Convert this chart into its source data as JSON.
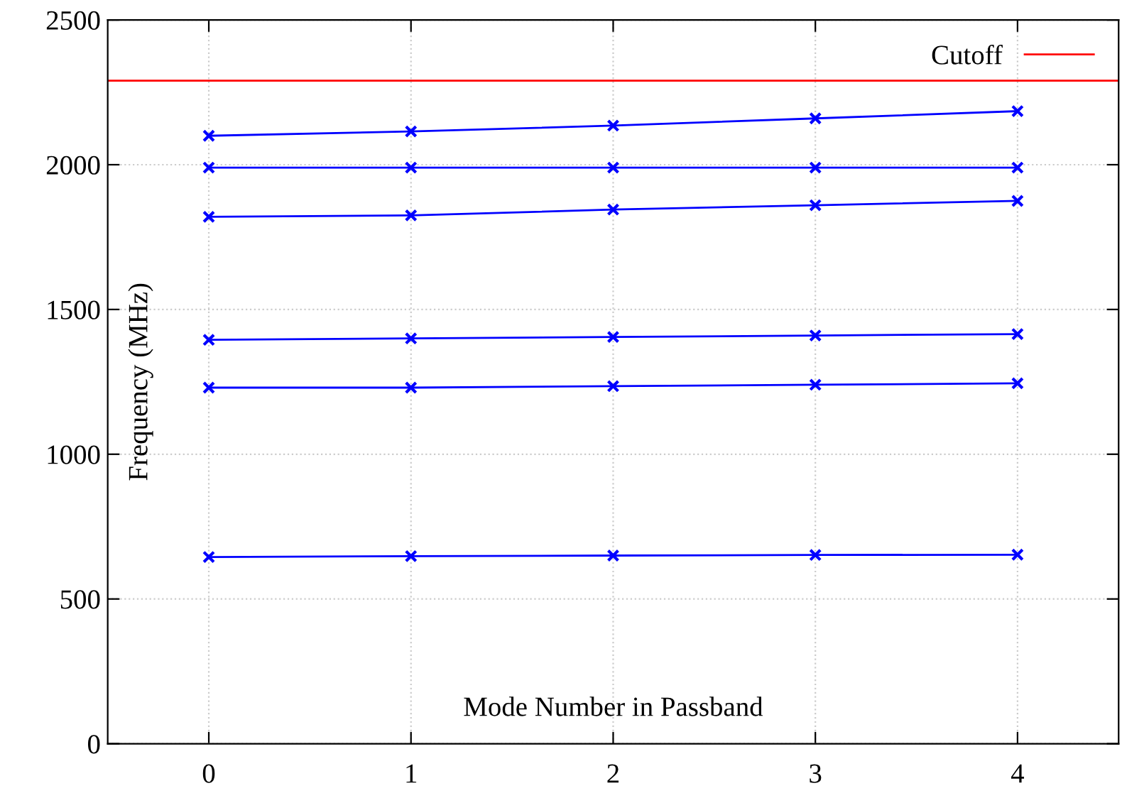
{
  "chart_data": {
    "type": "line",
    "xlabel": "Mode Number in Passband",
    "ylabel": "Frequency (MHz)",
    "x": [
      0,
      1,
      2,
      3,
      4
    ],
    "series": [
      {
        "color": "#0000ff",
        "values": [
          2100,
          2115,
          2135,
          2160,
          2185
        ]
      },
      {
        "color": "#0000ff",
        "values": [
          1990,
          1990,
          1990,
          1990,
          1990
        ]
      },
      {
        "color": "#0000ff",
        "values": [
          1820,
          1825,
          1845,
          1860,
          1875
        ]
      },
      {
        "color": "#0000ff",
        "values": [
          1395,
          1400,
          1405,
          1410,
          1415
        ]
      },
      {
        "color": "#0000ff",
        "values": [
          1230,
          1230,
          1235,
          1240,
          1245
        ]
      },
      {
        "color": "#0000ff",
        "values": [
          645,
          648,
          650,
          652,
          653
        ]
      }
    ],
    "ref_lines": [
      {
        "axis": "y",
        "value": 2290,
        "label": "Cutoff",
        "color": "#ff0000"
      }
    ],
    "xlim": [
      -0.5,
      4.5
    ],
    "ylim": [
      0,
      2500
    ],
    "xticks": [
      0,
      1,
      2,
      3,
      4
    ],
    "yticks": [
      0,
      500,
      1000,
      1500,
      2000,
      2500
    ],
    "grid": true,
    "legend": "top right",
    "marker": "cross",
    "line_style": "solid"
  }
}
